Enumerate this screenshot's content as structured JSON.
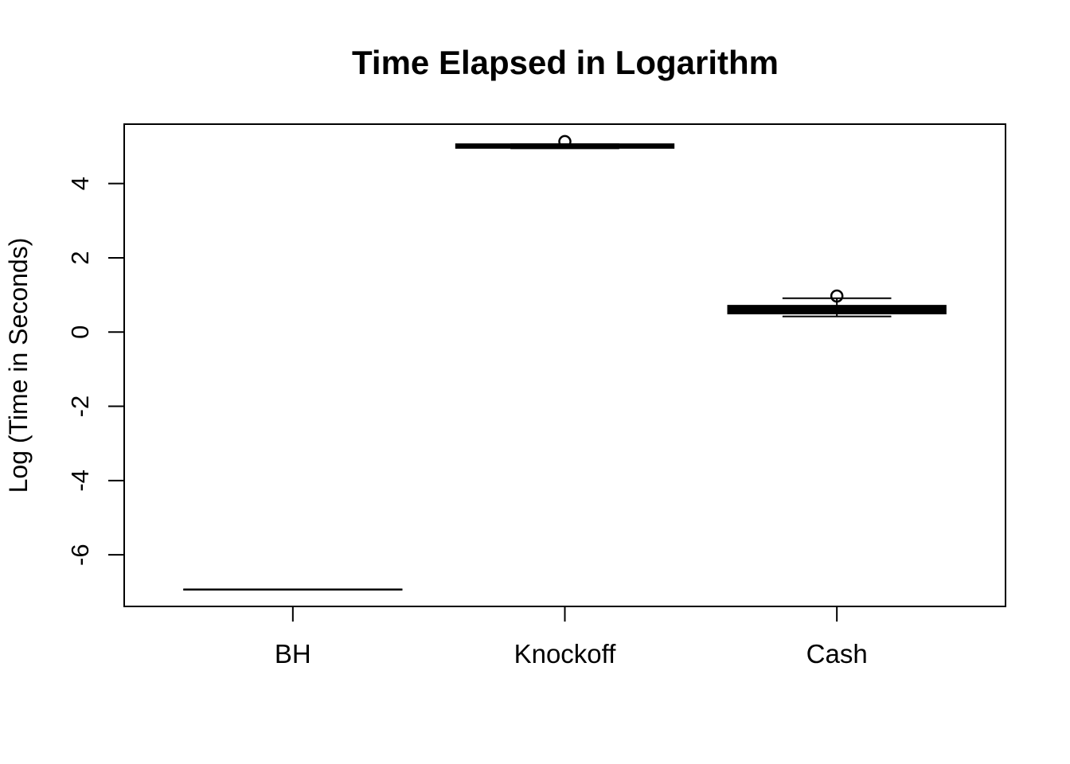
{
  "figure": {
    "background": "#ffffff",
    "foreground": "#000000"
  },
  "chart_data": {
    "type": "boxplot",
    "title": "Time Elapsed in Logarithm",
    "xlabel": "",
    "ylabel": "Log (Time in Seconds)",
    "categories": [
      "BH",
      "Knockoff",
      "Cash"
    ],
    "y_ticks": [
      -6,
      -4,
      -2,
      0,
      2,
      4
    ],
    "ylim": [
      -7.4,
      5.6
    ],
    "grid": false,
    "legend": false,
    "color": "#000000",
    "boxes": [
      {
        "category": "BH",
        "whisker_low": -6.93,
        "q1": -6.93,
        "median": -6.93,
        "q3": -6.93,
        "whisker_high": -6.93,
        "outliers": []
      },
      {
        "category": "Knockoff",
        "whisker_low": 4.95,
        "q1": 4.96,
        "median": 5.01,
        "q3": 5.06,
        "whisker_high": 5.06,
        "outliers": [
          5.13
        ]
      },
      {
        "category": "Cash",
        "whisker_low": 0.42,
        "q1": 0.5,
        "median": 0.6,
        "q3": 0.71,
        "whisker_high": 0.91,
        "outliers": [
          0.97
        ]
      }
    ]
  }
}
